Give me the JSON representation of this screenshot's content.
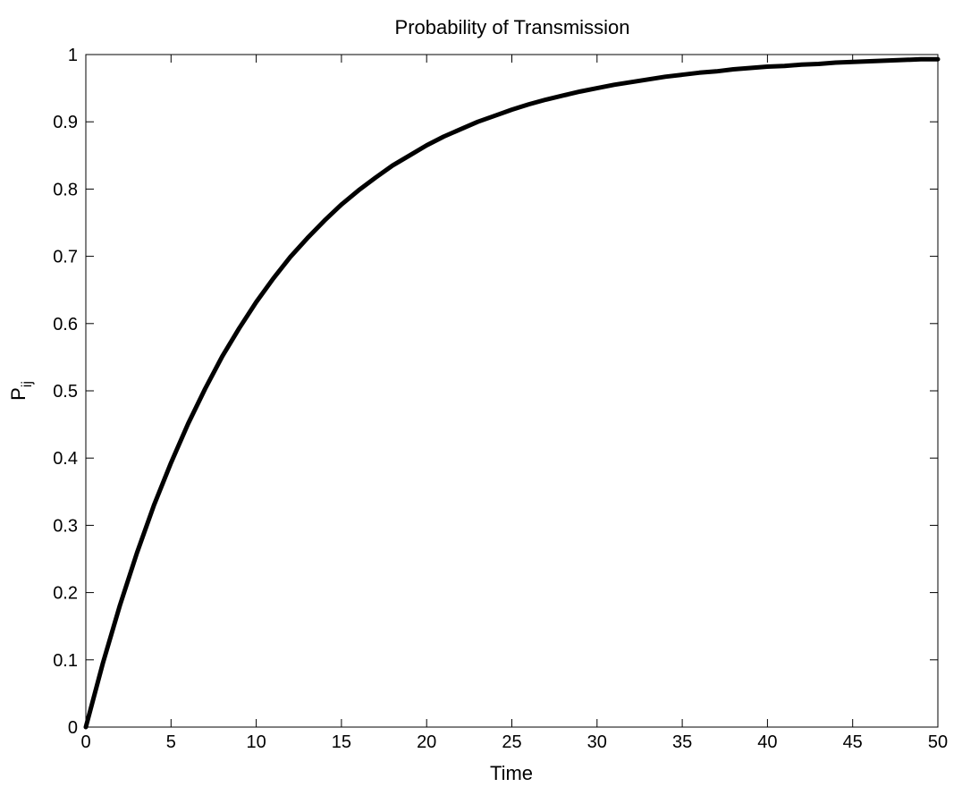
{
  "chart_data": {
    "type": "line",
    "title": "Probability of Transmission",
    "xlabel": "Time",
    "ylabel_main": "P",
    "ylabel_sub": "ij",
    "xlim": [
      0,
      50
    ],
    "ylim": [
      0,
      1
    ],
    "xticks": [
      0,
      5,
      10,
      15,
      20,
      25,
      30,
      35,
      40,
      45,
      50
    ],
    "yticks": [
      0,
      0.1,
      0.2,
      0.3,
      0.4,
      0.5,
      0.6,
      0.7,
      0.8,
      0.9,
      1
    ],
    "xtick_labels": [
      "0",
      "5",
      "10",
      "15",
      "20",
      "25",
      "30",
      "35",
      "40",
      "45",
      "50"
    ],
    "ytick_labels": [
      "0",
      "0.1",
      "0.2",
      "0.3",
      "0.4",
      "0.5",
      "0.6",
      "0.7",
      "0.8",
      "0.9",
      "1"
    ],
    "grid": false,
    "series": [
      {
        "color": "#000000",
        "x": [
          0,
          1,
          2,
          3,
          4,
          5,
          6,
          7,
          8,
          9,
          10,
          11,
          12,
          13,
          14,
          15,
          16,
          17,
          18,
          19,
          20,
          21,
          22,
          23,
          24,
          25,
          26,
          27,
          28,
          29,
          30,
          31,
          32,
          33,
          34,
          35,
          36,
          37,
          38,
          39,
          40,
          41,
          42,
          43,
          44,
          45,
          46,
          47,
          48,
          49,
          50
        ],
        "y": [
          0,
          0.095,
          0.181,
          0.259,
          0.33,
          0.393,
          0.451,
          0.503,
          0.551,
          0.593,
          0.632,
          0.667,
          0.699,
          0.727,
          0.753,
          0.777,
          0.798,
          0.817,
          0.835,
          0.85,
          0.865,
          0.878,
          0.889,
          0.9,
          0.909,
          0.918,
          0.926,
          0.933,
          0.939,
          0.945,
          0.95,
          0.955,
          0.959,
          0.963,
          0.967,
          0.97,
          0.973,
          0.975,
          0.978,
          0.98,
          0.982,
          0.983,
          0.985,
          0.986,
          0.988,
          0.989,
          0.99,
          0.991,
          0.992,
          0.993,
          0.993
        ]
      }
    ]
  }
}
